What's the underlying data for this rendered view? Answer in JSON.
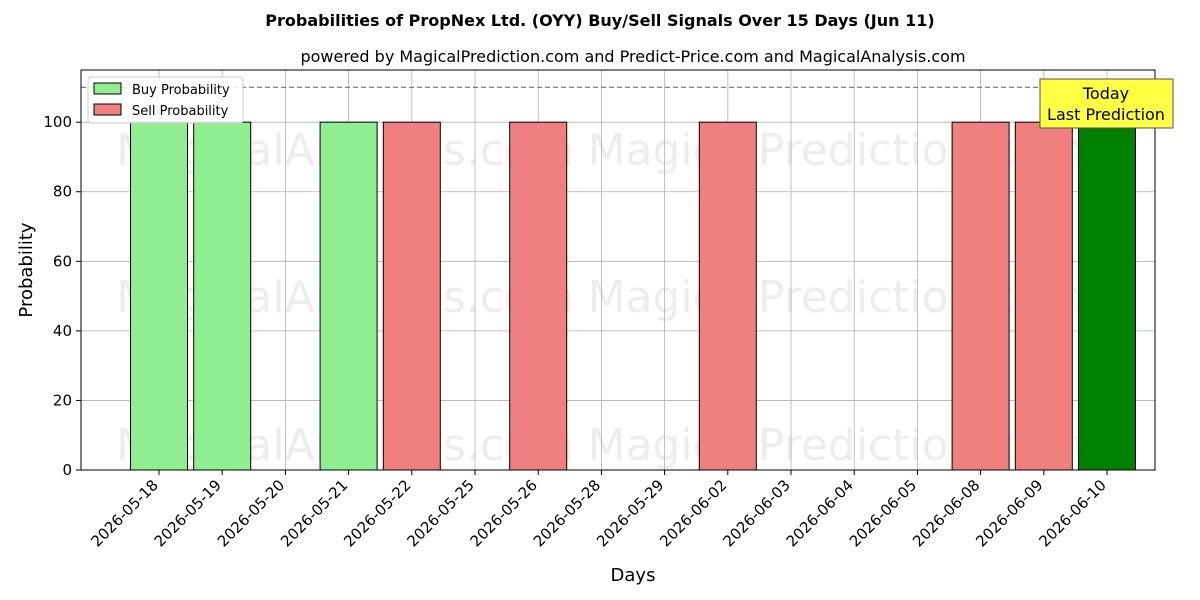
{
  "chart_data": {
    "type": "bar",
    "title": "Probabilities of PropNex Ltd. (OYY) Buy/Sell Signals Over 15 Days (Jun 11)",
    "subtitle": "powered by MagicalPrediction.com and Predict-Price.com and MagicalAnalysis.com",
    "xlabel": "Days",
    "ylabel": "Probability",
    "ylim": [
      0,
      115
    ],
    "yticks": [
      0,
      20,
      40,
      60,
      80,
      100
    ],
    "grid": true,
    "reference_line": 110,
    "legend_position": "top-left",
    "categories": [
      "2026-05-18",
      "2026-05-19",
      "2026-05-20",
      "2026-05-21",
      "2026-05-22",
      "2026-05-25",
      "2026-05-26",
      "2026-05-28",
      "2026-05-29",
      "2026-06-02",
      "2026-06-03",
      "2026-06-04",
      "2026-06-05",
      "2026-06-08",
      "2026-06-09",
      "2026-06-10"
    ],
    "series": [
      {
        "name": "Buy Probability",
        "color": "#90ee90",
        "values": [
          100,
          100,
          0,
          100,
          0,
          0,
          0,
          0,
          0,
          0,
          0,
          0,
          0,
          0,
          0,
          0
        ]
      },
      {
        "name": "Sell Probability",
        "color": "#f08080",
        "values": [
          0,
          0,
          0,
          0,
          100,
          0,
          100,
          0,
          0,
          100,
          0,
          0,
          0,
          100,
          100,
          0
        ]
      }
    ],
    "highlight": {
      "category": "2026-06-10",
      "value": 100,
      "color": "#008000"
    },
    "annotation": {
      "lines": [
        "Today",
        "Last Prediction"
      ],
      "background": "#ffff44"
    },
    "watermarks": [
      "MagicalAnalysis.com",
      "Magica Prediction.com"
    ]
  }
}
